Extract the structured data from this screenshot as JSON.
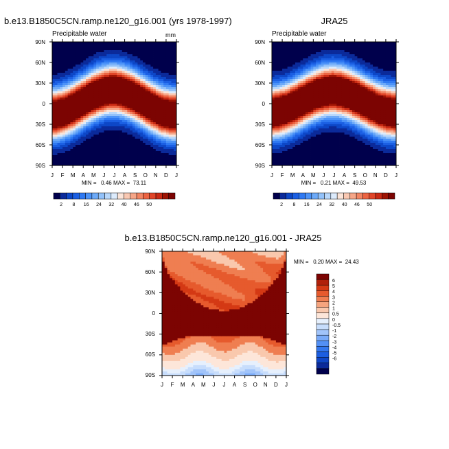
{
  "page": {
    "background": "#ffffff"
  },
  "colormaps": {
    "abs": [
      "#00004c",
      "#0b2a9a",
      "#0d47c7",
      "#1b5fe3",
      "#2f79f2",
      "#4c93f8",
      "#6daaf8",
      "#93c2fa",
      "#b9d8fb",
      "#dcebfc",
      "#fbe4d8",
      "#f9c8b2",
      "#f6a688",
      "#f28563",
      "#ec6442",
      "#e04528",
      "#c92a14",
      "#9e1404",
      "#7c0402"
    ],
    "diff": [
      "#00004c",
      "#0b2a9a",
      "#0f46c6",
      "#1c5ee0",
      "#3377ee",
      "#5390f5",
      "#79aaf8",
      "#a1c4fa",
      "#c7ddfc",
      "#e6f0fd",
      "#fde6d9",
      "#f9c8ad",
      "#f5a47e",
      "#ef7e51",
      "#e65a2d",
      "#d43914",
      "#b0200a",
      "#7c0402"
    ]
  },
  "chart_data": [
    {
      "type": "heatmap",
      "title": "b.e13.B1850C5CN.ramp.ne120_g16.001 (yrs 1978-1997)",
      "subtitle_left": "Precipitable water",
      "subtitle_right": "mm",
      "x_tick_labels": [
        "J",
        "F",
        "M",
        "A",
        "M",
        "J",
        "J",
        "A",
        "S",
        "O",
        "N",
        "D",
        "J"
      ],
      "y_tick_labels": [
        "90N",
        "60N",
        "30N",
        "0",
        "30S",
        "60S",
        "90S"
      ],
      "y_ticks_lat": [
        90,
        60,
        30,
        0,
        -30,
        -60,
        -90
      ],
      "stats": "MIN =   0.46 MAX =  73.11",
      "min": 0.46,
      "max": 73.11,
      "colorbar": {
        "orientation": "horizontal",
        "labels": [
          "2",
          "8",
          "16",
          "24",
          "32",
          "40",
          "46",
          "50"
        ],
        "num_colors": 19
      },
      "field_model": {
        "kind": "abs",
        "peak": 73.11,
        "floor": 0.46,
        "width_deg": 30,
        "amp_deg": 18,
        "itcz_shift": 2
      }
    },
    {
      "type": "heatmap",
      "title": "JRA25",
      "subtitle_left": "Precipitable water",
      "subtitle_right": "",
      "x_tick_labels": [
        "J",
        "F",
        "M",
        "A",
        "M",
        "J",
        "J",
        "A",
        "S",
        "O",
        "N",
        "D",
        "J"
      ],
      "y_tick_labels": [
        "90N",
        "60N",
        "30N",
        "0",
        "30S",
        "60S",
        "90S"
      ],
      "y_ticks_lat": [
        90,
        60,
        30,
        0,
        -30,
        -60,
        -90
      ],
      "stats": "MIN =   0.21 MAX =  49.53",
      "min": 0.21,
      "max": 49.53,
      "colorbar": {
        "orientation": "horizontal",
        "labels": [
          "2",
          "8",
          "16",
          "24",
          "32",
          "40",
          "46",
          "50"
        ],
        "num_colors": 19
      },
      "field_model": {
        "kind": "abs",
        "peak": 49.53,
        "floor": 0.21,
        "width_deg": 31,
        "amp_deg": 16,
        "itcz_shift": 3
      }
    },
    {
      "type": "heatmap",
      "title": "b.e13.B1850C5CN.ramp.ne120_g16.001 - JRA25",
      "subtitle_left": "",
      "subtitle_right": "",
      "x_tick_labels": [
        "J",
        "F",
        "M",
        "A",
        "M",
        "J",
        "J",
        "A",
        "S",
        "O",
        "N",
        "D",
        "J"
      ],
      "y_tick_labels": [
        "90N",
        "60N",
        "30N",
        "0",
        "30S",
        "60S",
        "90S"
      ],
      "y_ticks_lat": [
        90,
        60,
        30,
        0,
        -30,
        -60,
        -90
      ],
      "stats": "MIN =   0.20 MAX =  24.43",
      "min": 0.2,
      "max": 24.43,
      "colorbar": {
        "orientation": "vertical",
        "labels": [
          "6",
          "5",
          "4",
          "3",
          "2",
          "1",
          "0.5",
          "0",
          "-0.5",
          "-1",
          "-2",
          "-3",
          "-4",
          "-5",
          "-6"
        ],
        "num_colors": 18
      },
      "field_model": {
        "kind": "diff"
      }
    }
  ]
}
